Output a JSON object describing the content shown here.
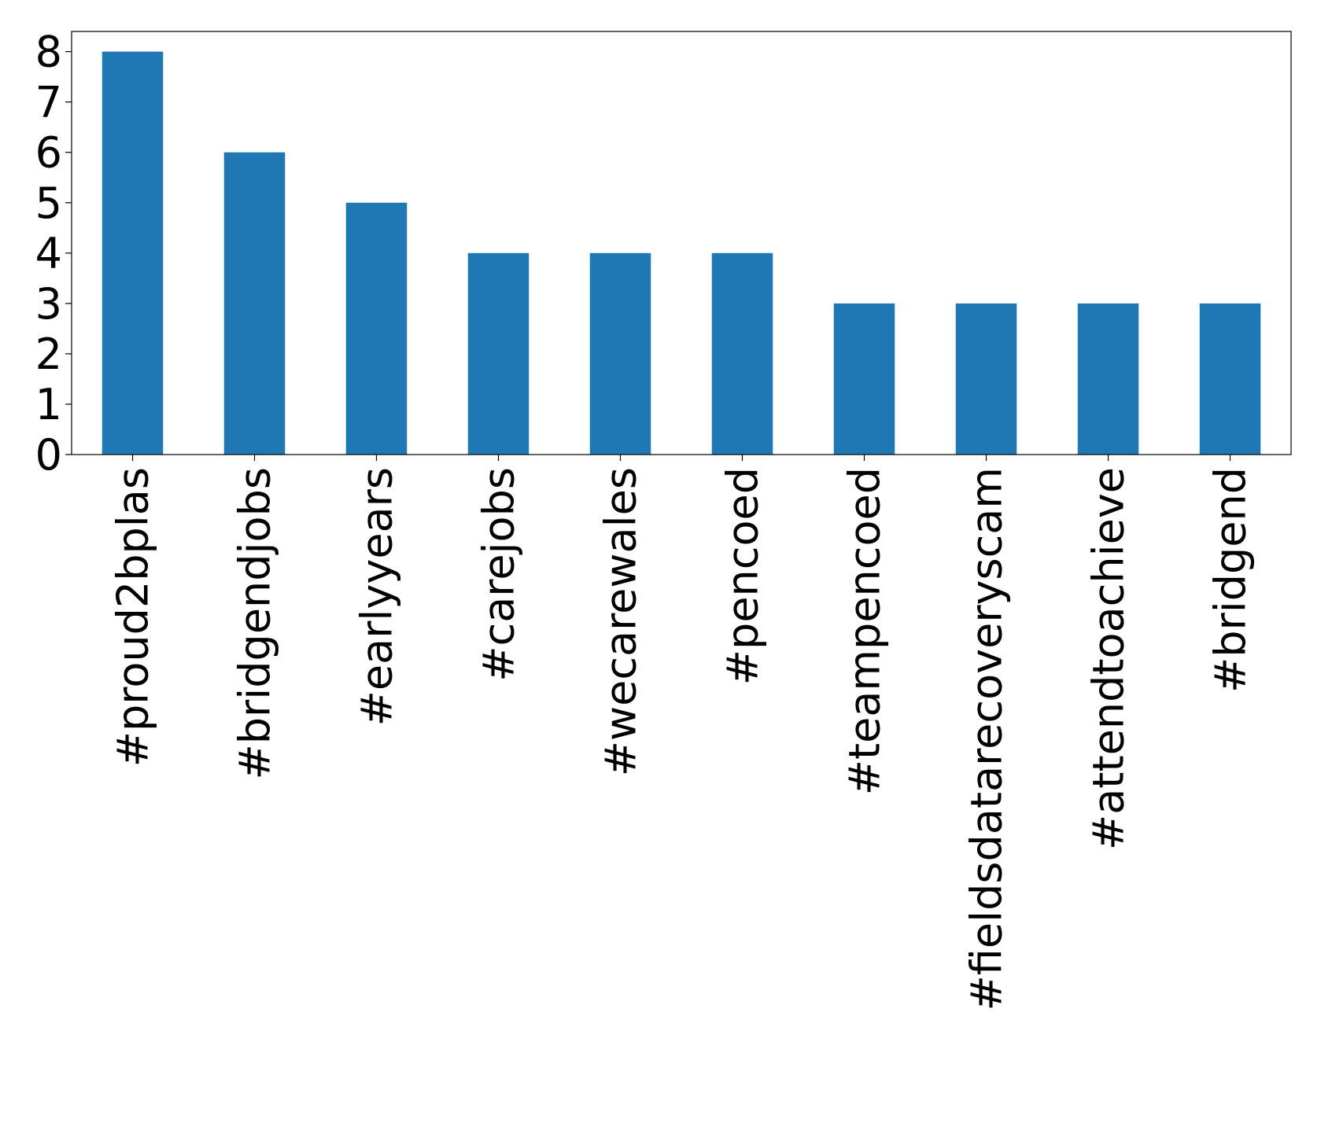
{
  "chart_data": {
    "type": "bar",
    "categories": [
      "#proud2bplas",
      "#bridgendjobs",
      "#earlyyears",
      "#carejobs",
      "#wecarewales",
      "#pencoed",
      "#teampencoed",
      "#fieldsdatarecoveryscam",
      "#attendtoachieve",
      "#bridgend"
    ],
    "values": [
      8,
      6,
      5,
      4,
      4,
      4,
      3,
      3,
      3,
      3
    ],
    "color": "#1f77b4",
    "ylim": [
      0,
      8.4
    ],
    "yticks": [
      0,
      1,
      2,
      3,
      4,
      5,
      6,
      7,
      8
    ],
    "grid": false
  }
}
